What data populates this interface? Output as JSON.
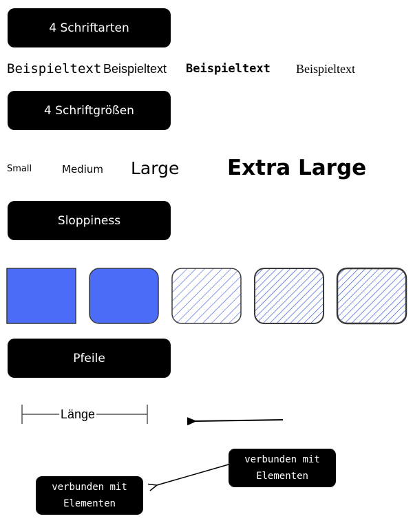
{
  "sections": {
    "fonts": "4 Schriftarten",
    "sizes": "4 Schriftgrößen",
    "sloppiness": "Sloppiness",
    "arrows": "Pfeile"
  },
  "font_samples": [
    "Beispieltext",
    "Beispieltext",
    "Beispieltext",
    "Beispieltext"
  ],
  "size_samples": [
    "Small",
    "Medium",
    "Large",
    "Extra Large"
  ],
  "shapes": {
    "fill_color": "#4a6cf7",
    "stroke_color": "#3a3a3a",
    "hatch_color": "#3b5bdb"
  },
  "arrows": {
    "length_label": "Länge",
    "connected_line1": "verbunden mit",
    "connected_line2": "Elementen",
    "connected2_line1": "verbunden mit",
    "connected2_line2": "Elementen"
  }
}
